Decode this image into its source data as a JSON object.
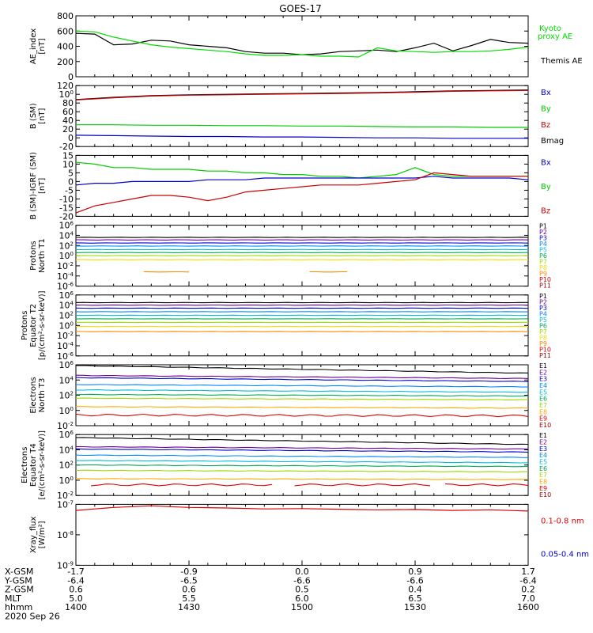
{
  "title": "GOES-17",
  "bottom_table": {
    "rows": [
      {
        "label": "X-GSM",
        "values": [
          "-1.7",
          "-0.9",
          "0.0",
          "0.9",
          "1.7"
        ]
      },
      {
        "label": "Y-GSM",
        "values": [
          "-6.4",
          "-6.5",
          "-6.6",
          "-6.6",
          "-6.4"
        ]
      },
      {
        "label": "Z-GSM",
        "values": [
          "0.6",
          "0.6",
          "0.5",
          "0.4",
          "0.2"
        ]
      },
      {
        "label": "MLT",
        "values": [
          "5.0",
          "5.5",
          "6.0",
          "6.5",
          "7.0"
        ]
      },
      {
        "label": "hhmm",
        "values": [
          "1400",
          "1430",
          "1500",
          "1530",
          "1600"
        ]
      }
    ],
    "date": "2020 Sep 26"
  },
  "chart_data": [
    {
      "id": "ae",
      "type": "line",
      "ylabel": [
        "AE_index",
        "[nT]"
      ],
      "ylim": [
        0,
        800
      ],
      "yticks": [
        "0",
        "200",
        "400",
        "600",
        "800"
      ],
      "legend": [
        {
          "text": "Kyoto",
          "color": "#00dd00"
        },
        {
          "text": "proxy AE",
          "color": "#00dd00"
        },
        {
          "text": "Themis AE",
          "color": "#000000"
        }
      ],
      "x": [
        0,
        5,
        10,
        15,
        20,
        25,
        30,
        35,
        40,
        45,
        50,
        55,
        60,
        65,
        70,
        75,
        80,
        85,
        90,
        95,
        100,
        105,
        110,
        115,
        120
      ],
      "series": [
        {
          "color": "#000000",
          "values": [
            570,
            560,
            420,
            430,
            480,
            470,
            420,
            400,
            380,
            330,
            310,
            310,
            290,
            300,
            330,
            340,
            350,
            330,
            380,
            440,
            340,
            410,
            490,
            450,
            440
          ]
        },
        {
          "color": "#00dd00",
          "values": [
            600,
            590,
            520,
            470,
            420,
            390,
            370,
            350,
            330,
            300,
            280,
            280,
            290,
            270,
            270,
            260,
            380,
            340,
            330,
            320,
            330,
            330,
            340,
            360,
            390
          ]
        }
      ]
    },
    {
      "id": "bsm",
      "type": "line",
      "ylabel": [
        "B (SM)",
        "[nT]"
      ],
      "ylim": [
        -20,
        120
      ],
      "yticks": [
        "-20",
        "0",
        "20",
        "40",
        "60",
        "80",
        "100",
        "120"
      ],
      "legend": [
        {
          "text": "Bx",
          "color": "#0000cc"
        },
        {
          "text": "By",
          "color": "#00cc00"
        },
        {
          "text": "Bz",
          "color": "#cc0000"
        },
        {
          "text": "Bmag",
          "color": "#000000"
        }
      ],
      "x": [
        0,
        10,
        20,
        30,
        40,
        50,
        60,
        70,
        80,
        90,
        100,
        110,
        120
      ],
      "series": [
        {
          "color": "#000000",
          "values": [
            88,
            93,
            97,
            99,
            100,
            101,
            102,
            103,
            104,
            106,
            108,
            109,
            110
          ]
        },
        {
          "color": "#cc0000",
          "values": [
            87,
            92,
            96,
            98,
            99,
            100,
            101,
            102,
            103,
            105,
            107,
            108,
            109
          ]
        },
        {
          "color": "#00cc00",
          "values": [
            30,
            30,
            29,
            29,
            28,
            28,
            27,
            27,
            26,
            25,
            25,
            24,
            24
          ]
        },
        {
          "color": "#0000cc",
          "values": [
            6,
            5,
            4,
            3,
            3,
            2,
            2,
            1,
            0,
            0,
            -1,
            -1,
            -1
          ]
        }
      ]
    },
    {
      "id": "bsm_igrf",
      "type": "line",
      "ylabel": [
        "B (SM)-IGRF (SM)",
        "[nT]"
      ],
      "ylim": [
        -20,
        15
      ],
      "yticks": [
        "-20",
        "-15",
        "-10",
        "-5",
        "0",
        "5",
        "10",
        "15"
      ],
      "legend": [
        {
          "text": "Bx",
          "color": "#0000cc"
        },
        {
          "text": "By",
          "color": "#00cc00"
        },
        {
          "text": "Bz",
          "color": "#cc0000"
        }
      ],
      "x": [
        0,
        5,
        10,
        15,
        20,
        25,
        30,
        35,
        40,
        45,
        50,
        55,
        60,
        65,
        70,
        75,
        80,
        85,
        90,
        95,
        100,
        105,
        110,
        115,
        120
      ],
      "series": [
        {
          "color": "#00cc00",
          "values": [
            11,
            10,
            8,
            8,
            7,
            7,
            7,
            6,
            6,
            5,
            5,
            4,
            4,
            3,
            3,
            2,
            3,
            4,
            8,
            4,
            3,
            3,
            3,
            3,
            3
          ]
        },
        {
          "color": "#0000cc",
          "values": [
            -2,
            -1,
            -1,
            0,
            0,
            0,
            0,
            1,
            1,
            1,
            2,
            2,
            2,
            2,
            2,
            2,
            2,
            2,
            2,
            3,
            2,
            2,
            2,
            2,
            1
          ]
        },
        {
          "color": "#cc0000",
          "values": [
            -18,
            -14,
            -12,
            -10,
            -8,
            -8,
            -9,
            -11,
            -9,
            -6,
            -5,
            -4,
            -3,
            -2,
            -2,
            -2,
            -1,
            0,
            1,
            5,
            4,
            3,
            3,
            3,
            3
          ]
        }
      ]
    },
    {
      "id": "p_north",
      "type": "line",
      "log": true,
      "ylabel": [
        "Protons",
        "North T1"
      ],
      "ylim": [
        -6,
        6
      ],
      "yticks": [
        "10-6",
        "10-4",
        "10-2",
        "100",
        "102",
        "104",
        "106"
      ],
      "legend": [
        {
          "text": "P1",
          "color": "#000000"
        },
        {
          "text": "P2",
          "color": "#6a0099"
        },
        {
          "text": "P3",
          "color": "#0000cc"
        },
        {
          "text": "P4",
          "color": "#0088ff"
        },
        {
          "text": "P5",
          "color": "#00bbdd"
        },
        {
          "text": "P6",
          "color": "#00aa55"
        },
        {
          "text": "P7",
          "color": "#99dd00"
        },
        {
          "text": "P8",
          "color": "#eedd00"
        },
        {
          "text": "P9",
          "color": "#ff8800"
        },
        {
          "text": "P10",
          "color": "#dd0000"
        },
        {
          "text": "P11",
          "color": "#990000"
        }
      ],
      "series": [
        {
          "color": "#000000",
          "level": 3.6
        },
        {
          "color": "#6a0099",
          "level": 3.1
        },
        {
          "color": "#0000cc",
          "level": 2.5
        },
        {
          "color": "#0088ff",
          "level": 1.9
        },
        {
          "color": "#00bbdd",
          "level": 1.2
        },
        {
          "color": "#00aa55",
          "level": 0.6
        },
        {
          "color": "#99dd00",
          "level": 0.0
        },
        {
          "color": "#eedd00",
          "level": -0.8
        },
        {
          "color": "#ff8800",
          "level": -3.2,
          "segments": [
            [
              18,
              30
            ],
            [
              62,
              73
            ]
          ]
        }
      ]
    },
    {
      "id": "p_equator",
      "type": "line",
      "log": true,
      "ylabel": [
        "Protons",
        "Equator T2",
        "[p/(cm²-s-sr-keV)]"
      ],
      "ylim": [
        -6,
        6
      ],
      "yticks": [
        "10-6",
        "10-4",
        "10-2",
        "100",
        "102",
        "104",
        "106"
      ],
      "legend": [
        {
          "text": "P1",
          "color": "#000000"
        },
        {
          "text": "P2",
          "color": "#6a0099"
        },
        {
          "text": "P3",
          "color": "#0000cc"
        },
        {
          "text": "P4",
          "color": "#0088ff"
        },
        {
          "text": "P5",
          "color": "#00bbdd"
        },
        {
          "text": "P6",
          "color": "#00aa55"
        },
        {
          "text": "P7",
          "color": "#99dd00"
        },
        {
          "text": "P8",
          "color": "#eedd00"
        },
        {
          "text": "P9",
          "color": "#ff8800"
        },
        {
          "text": "P10",
          "color": "#dd0000"
        },
        {
          "text": "P11",
          "color": "#990000"
        }
      ],
      "series": [
        {
          "color": "#000000",
          "level": 4.5
        },
        {
          "color": "#6a0099",
          "level": 4.0
        },
        {
          "color": "#0000cc",
          "level": 3.4
        },
        {
          "color": "#0088ff",
          "level": 2.7
        },
        {
          "color": "#00bbdd",
          "level": 2.0
        },
        {
          "color": "#00aa55",
          "level": 1.3
        },
        {
          "color": "#99dd00",
          "level": 0.6
        },
        {
          "color": "#eedd00",
          "level": -0.2
        },
        {
          "color": "#ff8800",
          "level": -1.2
        }
      ]
    },
    {
      "id": "e_north",
      "type": "line",
      "log": true,
      "ylabel": [
        "Electrons",
        "North T3"
      ],
      "ylim": [
        -2,
        6
      ],
      "yticks": [
        "10-2",
        "100",
        "102",
        "104",
        "106"
      ],
      "legend": [
        {
          "text": "E1",
          "color": "#000000"
        },
        {
          "text": "E2",
          "color": "#6a0099"
        },
        {
          "text": "E3",
          "color": "#0000cc"
        },
        {
          "text": "E4",
          "color": "#0088ff"
        },
        {
          "text": "E5",
          "color": "#00bbdd"
        },
        {
          "text": "E6",
          "color": "#00aa55"
        },
        {
          "text": "E7",
          "color": "#99dd00"
        },
        {
          "text": "E8",
          "color": "#ffaa00"
        },
        {
          "text": "E9",
          "color": "#dd0000"
        },
        {
          "text": "E10",
          "color": "#990000"
        }
      ],
      "series": [
        {
          "color": "#000000",
          "level": 5.9,
          "end": 4.9
        },
        {
          "color": "#6a0099",
          "level": 4.6,
          "end": 4.2
        },
        {
          "color": "#0000cc",
          "level": 4.3,
          "end": 3.8
        },
        {
          "color": "#0088ff",
          "level": 3.4,
          "end": 3.1
        },
        {
          "color": "#00bbdd",
          "level": 2.7,
          "end": 2.4
        },
        {
          "color": "#00aa55",
          "level": 2.1,
          "end": 1.9
        },
        {
          "color": "#99dd00",
          "level": 1.6,
          "end": 1.4
        },
        {
          "color": "#ffaa00",
          "level": 0.5,
          "end": 0.3
        },
        {
          "color": "#dd0000",
          "level": -0.6,
          "end": -0.7,
          "wavy": true
        }
      ]
    },
    {
      "id": "e_equator",
      "type": "line",
      "log": true,
      "ylabel": [
        "Electrons",
        "Equator T4",
        "[e/(cm²-s-sr-keV)]"
      ],
      "ylim": [
        -2,
        6
      ],
      "yticks": [
        "10-2",
        "100",
        "102",
        "104",
        "106"
      ],
      "legend": [
        {
          "text": "E1",
          "color": "#000000"
        },
        {
          "text": "E2",
          "color": "#6a0099"
        },
        {
          "text": "E3",
          "color": "#0000cc"
        },
        {
          "text": "E4",
          "color": "#0088ff"
        },
        {
          "text": "E5",
          "color": "#00bbdd"
        },
        {
          "text": "E6",
          "color": "#00aa55"
        },
        {
          "text": "E7",
          "color": "#99dd00"
        },
        {
          "text": "E8",
          "color": "#ffaa00"
        },
        {
          "text": "E9",
          "color": "#dd0000"
        },
        {
          "text": "E10",
          "color": "#990000"
        }
      ],
      "series": [
        {
          "color": "#000000",
          "level": 5.6,
          "end": 4.7
        },
        {
          "color": "#6a0099",
          "level": 4.4,
          "end": 4.1
        },
        {
          "color": "#0000cc",
          "level": 4.1,
          "end": 3.7
        },
        {
          "color": "#0088ff",
          "level": 3.3,
          "end": 3.0
        },
        {
          "color": "#00bbdd",
          "level": 2.6,
          "end": 2.3
        },
        {
          "color": "#00aa55",
          "level": 2.0,
          "end": 1.8
        },
        {
          "color": "#99dd00",
          "level": 1.3,
          "end": 1.1
        },
        {
          "color": "#ffaa00",
          "level": 0.2,
          "end": 0.1
        },
        {
          "color": "#dd0000",
          "level": -0.6,
          "end": -0.6,
          "wavy": true,
          "segments": [
            [
              4,
              52
            ],
            [
              58,
              95
            ],
            [
              98,
              120
            ]
          ]
        }
      ]
    },
    {
      "id": "xray",
      "type": "line",
      "log": true,
      "ylabel": [
        "Xray_flux",
        "[W/m²]"
      ],
      "ylim": [
        -9,
        -7
      ],
      "yticks": [
        "10-9",
        "10-8",
        "10-7"
      ],
      "legend": [
        {
          "text": "0.1-0.8 nm",
          "color": "#dd0000"
        },
        {
          "text": "0.05-0.4 nm",
          "color": "#0000cc"
        }
      ],
      "x": [
        0,
        10,
        20,
        30,
        40,
        50,
        60,
        70,
        80,
        90,
        100,
        110,
        120
      ],
      "series": [
        {
          "color": "#dd0000",
          "values": [
            -7.2,
            -7.1,
            -7.05,
            -7.1,
            -7.12,
            -7.15,
            -7.14,
            -7.16,
            -7.18,
            -7.17,
            -7.2,
            -7.18,
            -7.22
          ]
        }
      ]
    }
  ]
}
